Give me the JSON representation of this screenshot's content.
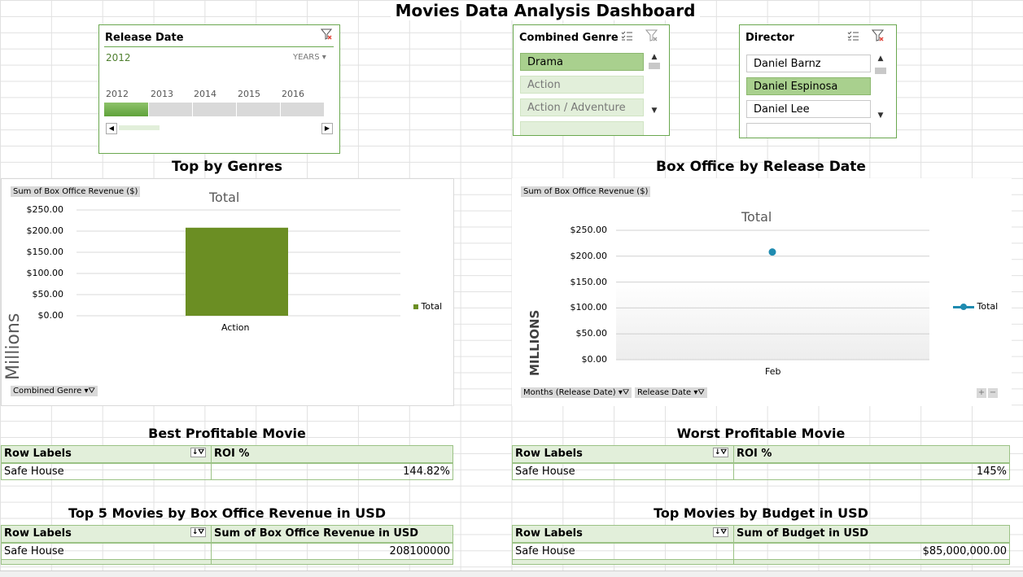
{
  "dashboard_title": "Movies Data Analysis Dashboard",
  "release_slicer": {
    "header": "Release Date",
    "selected_range": "2012",
    "level": "YEARS",
    "years": [
      "2012",
      "2013",
      "2014",
      "2015",
      "2016"
    ]
  },
  "genre_slicer": {
    "header": "Combined Genre",
    "items": [
      "Drama",
      "Action",
      "Action / Adventure"
    ]
  },
  "director_slicer": {
    "header": "Director",
    "items": [
      "Daniel Barnz",
      "Daniel Espinosa",
      "Daniel Lee"
    ]
  },
  "genres_section": {
    "title": "Top by Genres",
    "value_button": "Sum of Box Office Revenue ($)",
    "axis_button": "Combined Genre",
    "unit_label": "Millions"
  },
  "release_section": {
    "title": "Box Office by Release Date",
    "value_button": "Sum of Box Office Revenue ($)",
    "axis_button_1": "Months (Release Date)",
    "axis_button_2": "Release Date",
    "unit_label": "MILLIONS"
  },
  "chart_data": [
    {
      "type": "bar",
      "title": "Total",
      "categories": [
        "Action"
      ],
      "series": [
        {
          "name": "Total",
          "values": [
            208.1
          ]
        }
      ],
      "ylabel": "Millions",
      "yticks": [
        "$250.00",
        "$200.00",
        "$150.00",
        "$100.00",
        "$50.00",
        "$0.00"
      ],
      "ylim": [
        0,
        250
      ],
      "legend": "right",
      "color": "#6b8e23"
    },
    {
      "type": "line",
      "title": "Total",
      "categories": [
        "Feb"
      ],
      "series": [
        {
          "name": "Total",
          "values": [
            208.1
          ]
        }
      ],
      "ylabel": "MILLIONS",
      "yticks": [
        "$250.00",
        "$200.00",
        "$150.00",
        "$100.00",
        "$50.00",
        "$0.00"
      ],
      "ylim": [
        0,
        250
      ],
      "legend": "right",
      "color": "#1f8bb0"
    }
  ],
  "best_table": {
    "title": "Best Profitable Movie",
    "headers": [
      "Row Labels",
      "ROI %"
    ],
    "rows": [
      [
        "Safe House",
        "144.82%"
      ]
    ]
  },
  "worst_table": {
    "title": "Worst Profitable Movie",
    "headers": [
      "Row Labels",
      "ROI %"
    ],
    "rows": [
      [
        "Safe House",
        "145%"
      ]
    ]
  },
  "top5_table": {
    "title": "Top 5 Movies by Box Office Revenue in USD",
    "headers": [
      "Row Labels",
      "Sum of Box Office Revenue in USD"
    ],
    "rows": [
      [
        "Safe House",
        "208100000"
      ]
    ]
  },
  "budget_table": {
    "title": "Top Movies by Budget in USD",
    "headers": [
      "Row Labels",
      "Sum of Budget in USD"
    ],
    "rows": [
      [
        "Safe House",
        "$85,000,000.00"
      ]
    ]
  }
}
